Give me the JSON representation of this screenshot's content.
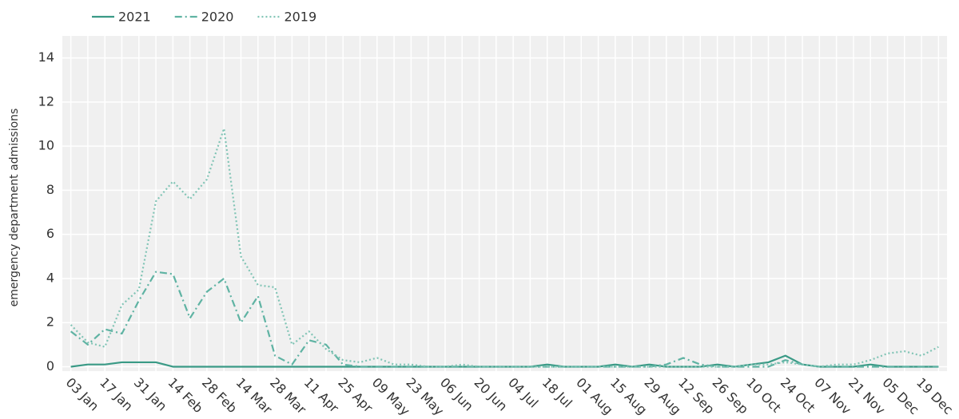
{
  "chart_data": {
    "type": "line",
    "y_label": "emergency department admissions",
    "categories": [
      "03 Jan",
      null,
      "17 Jan",
      null,
      "31 Jan",
      null,
      "14 Feb",
      null,
      "28 Feb",
      null,
      "14 Mar",
      null,
      "28 Mar",
      null,
      "11 Apr",
      null,
      "25 Apr",
      null,
      "09 May",
      null,
      "23 May",
      null,
      "06 Jun",
      null,
      "20 Jun",
      null,
      "04 Jul",
      null,
      "18 Jul",
      null,
      "01 Aug",
      null,
      "15 Aug",
      null,
      "29 Aug",
      null,
      "12 Sep",
      null,
      "26 Sep",
      null,
      "10 Oct",
      null,
      "24 Oct",
      null,
      "07 Nov",
      null,
      "21 Nov",
      null,
      "05 Dec",
      null,
      "19 Dec",
      null
    ],
    "series": [
      {
        "name": "2021",
        "color": "#3a9a86",
        "line_style": "solid",
        "values": [
          0,
          0.1,
          0.1,
          0.2,
          0.2,
          0.2,
          0,
          0,
          0,
          0,
          0,
          0,
          0,
          0,
          0,
          0,
          0,
          0,
          0,
          0,
          0,
          0,
          0,
          0,
          0,
          0,
          0,
          0,
          0.1,
          0,
          0,
          0,
          0.1,
          0,
          0.1,
          0,
          0,
          0,
          0.1,
          0,
          0.1,
          0.2,
          0.5,
          0.1,
          0,
          0,
          0,
          0.1,
          0,
          0,
          0,
          0
        ]
      },
      {
        "name": "2020",
        "color": "#5fb3a3",
        "line_style": "dashdot",
        "values": [
          1.6,
          1.0,
          1.7,
          1.5,
          3.0,
          4.3,
          4.2,
          2.2,
          3.4,
          4.0,
          2.0,
          3.2,
          0.5,
          0.1,
          1.2,
          1.0,
          0.1,
          0,
          0,
          0,
          0,
          0,
          0,
          0,
          0,
          0,
          0,
          0,
          0,
          0,
          0,
          0,
          0,
          0,
          0,
          0.1,
          0.4,
          0.1,
          0,
          0,
          0,
          0,
          0.3,
          0.1,
          0,
          0,
          0,
          0,
          0,
          0,
          0,
          0
        ]
      },
      {
        "name": "2019",
        "color": "#80c4b5",
        "line_style": "dot",
        "values": [
          1.9,
          1.1,
          0.9,
          2.8,
          3.5,
          7.5,
          8.4,
          7.6,
          8.5,
          10.8,
          5.0,
          3.7,
          3.6,
          1.0,
          1.6,
          0.8,
          0.3,
          0.2,
          0.4,
          0.1,
          0.1,
          0,
          0,
          0.1,
          0,
          0,
          0,
          0,
          0,
          0,
          0,
          0,
          0,
          0,
          0,
          0,
          0,
          0,
          0,
          0,
          0.1,
          0.1,
          0.2,
          0.1,
          0,
          0.1,
          0.1,
          0.3,
          0.6,
          0.7,
          0.5,
          0.9
        ]
      }
    ],
    "ylim": [
      -0.2,
      15
    ],
    "yticks": [
      0,
      2,
      4,
      6,
      8,
      10,
      12,
      14
    ],
    "grid": true
  }
}
